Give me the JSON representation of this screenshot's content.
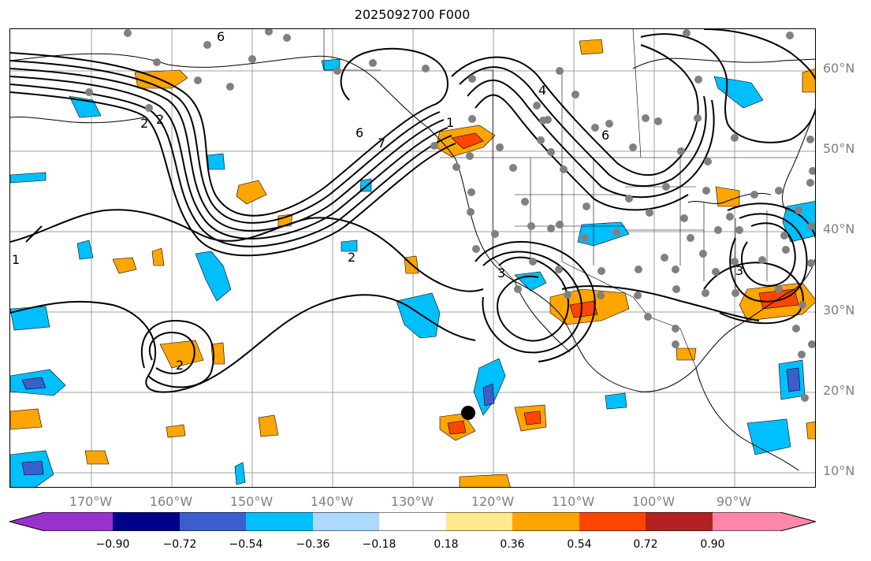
{
  "title": "2025092700 F000",
  "lat_labels": [
    "60°N",
    "50°N",
    "40°N",
    "30°N",
    "20°N",
    "10°N"
  ],
  "lon_labels": [
    "170°W",
    "160°W",
    "150°W",
    "140°W",
    "130°W",
    "120°W",
    "110°W",
    "100°W",
    "90°W"
  ],
  "colorbar": {
    "ticks": [
      "−0.90",
      "−0.72",
      "−0.54",
      "−0.36",
      "−0.18",
      "0.18",
      "0.36",
      "0.54",
      "0.72",
      "0.90"
    ],
    "colors": [
      "#9932cc",
      "#00008b",
      "#3a5fcd",
      "#00bfff",
      "#add8ff",
      "#ffffff",
      "#ffe98a",
      "#ffa500",
      "#ff4500",
      "#b22222",
      "#ff88aa"
    ]
  },
  "contour_labels": [
    "6",
    "2",
    "6",
    "7",
    "1",
    "4",
    "6",
    "2",
    "3",
    "3",
    "2",
    "2",
    "1"
  ],
  "colors": {
    "warm": "#ffa500",
    "hot": "#ff4500",
    "cool": "#00bfff",
    "deep": "#3a5fcd",
    "station": "#808080",
    "grid": "#a0a0a0",
    "marker": "#000000"
  }
}
